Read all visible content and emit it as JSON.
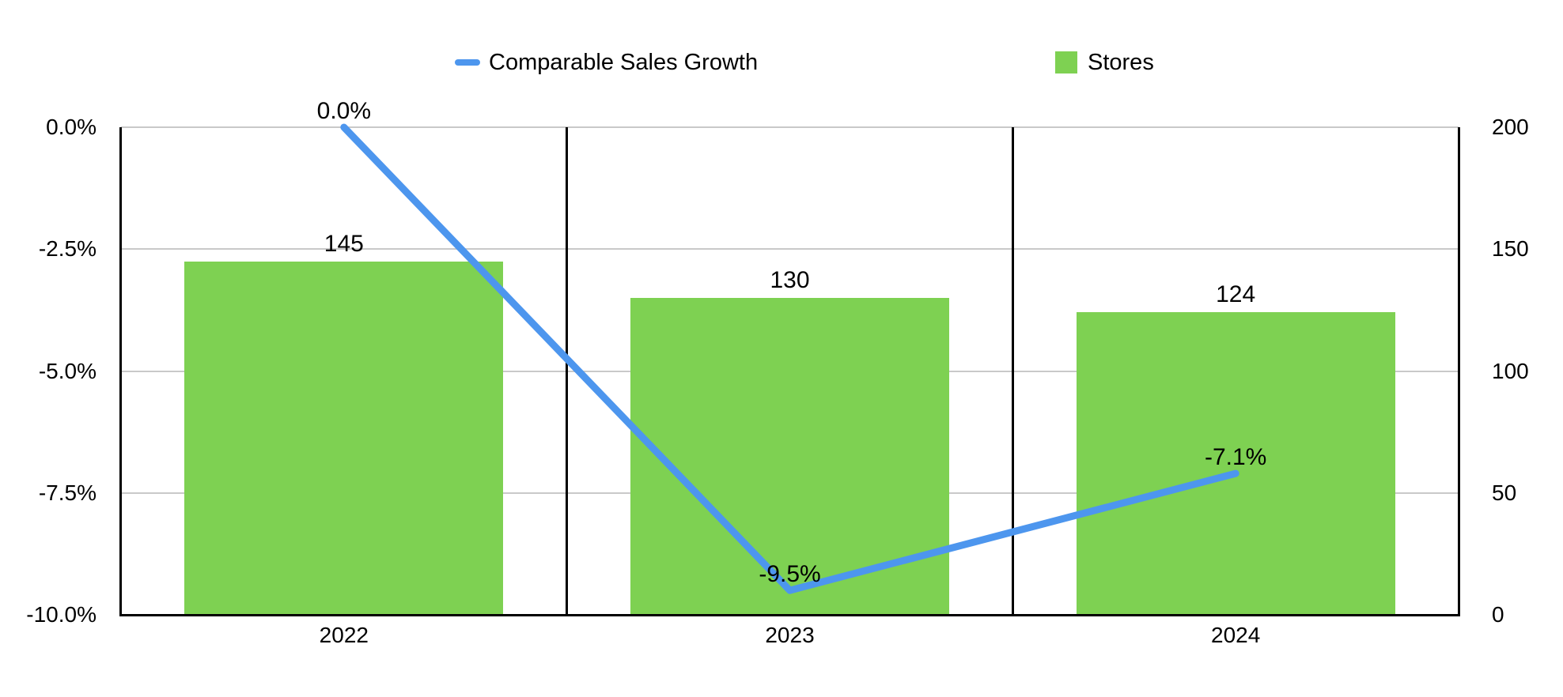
{
  "legend": {
    "items": [
      {
        "label": "Comparable Sales Growth",
        "marker": "line-dash",
        "color": "#4D96EE"
      },
      {
        "label": "Stores",
        "marker": "square",
        "color": "#7ED152"
      }
    ]
  },
  "chart_data": {
    "type": "combo",
    "categories": [
      "2022",
      "2023",
      "2024"
    ],
    "series": [
      {
        "name": "Comparable Sales Growth",
        "type": "line",
        "axis": "left",
        "values": [
          0.0,
          -9.5,
          -7.1
        ],
        "point_labels": [
          "0.0%",
          "-9.5%",
          "-7.1%"
        ],
        "color": "#4D96EE"
      },
      {
        "name": "Stores",
        "type": "bar",
        "axis": "right",
        "values": [
          145,
          130,
          124
        ],
        "point_labels": [
          "145",
          "130",
          "124"
        ],
        "color": "#7ED152"
      }
    ],
    "left_axis": {
      "tick_labels": [
        "0.0%",
        "-2.5%",
        "-5.0%",
        "-7.5%",
        "-10.0%"
      ],
      "tick_values": [
        0,
        -2.5,
        -5,
        -7.5,
        -10
      ],
      "min": -10,
      "max": 0
    },
    "right_axis": {
      "tick_labels": [
        "200",
        "150",
        "100",
        "50",
        "0"
      ],
      "tick_values": [
        200,
        150,
        100,
        50,
        0
      ],
      "min": 0,
      "max": 200
    },
    "grid": "horizontal",
    "category_separators": true,
    "legend_position": "top",
    "colors": {
      "gridline": "#c9c9c9",
      "axis": "#000000",
      "text": "#000000",
      "background": "#ffffff"
    }
  }
}
